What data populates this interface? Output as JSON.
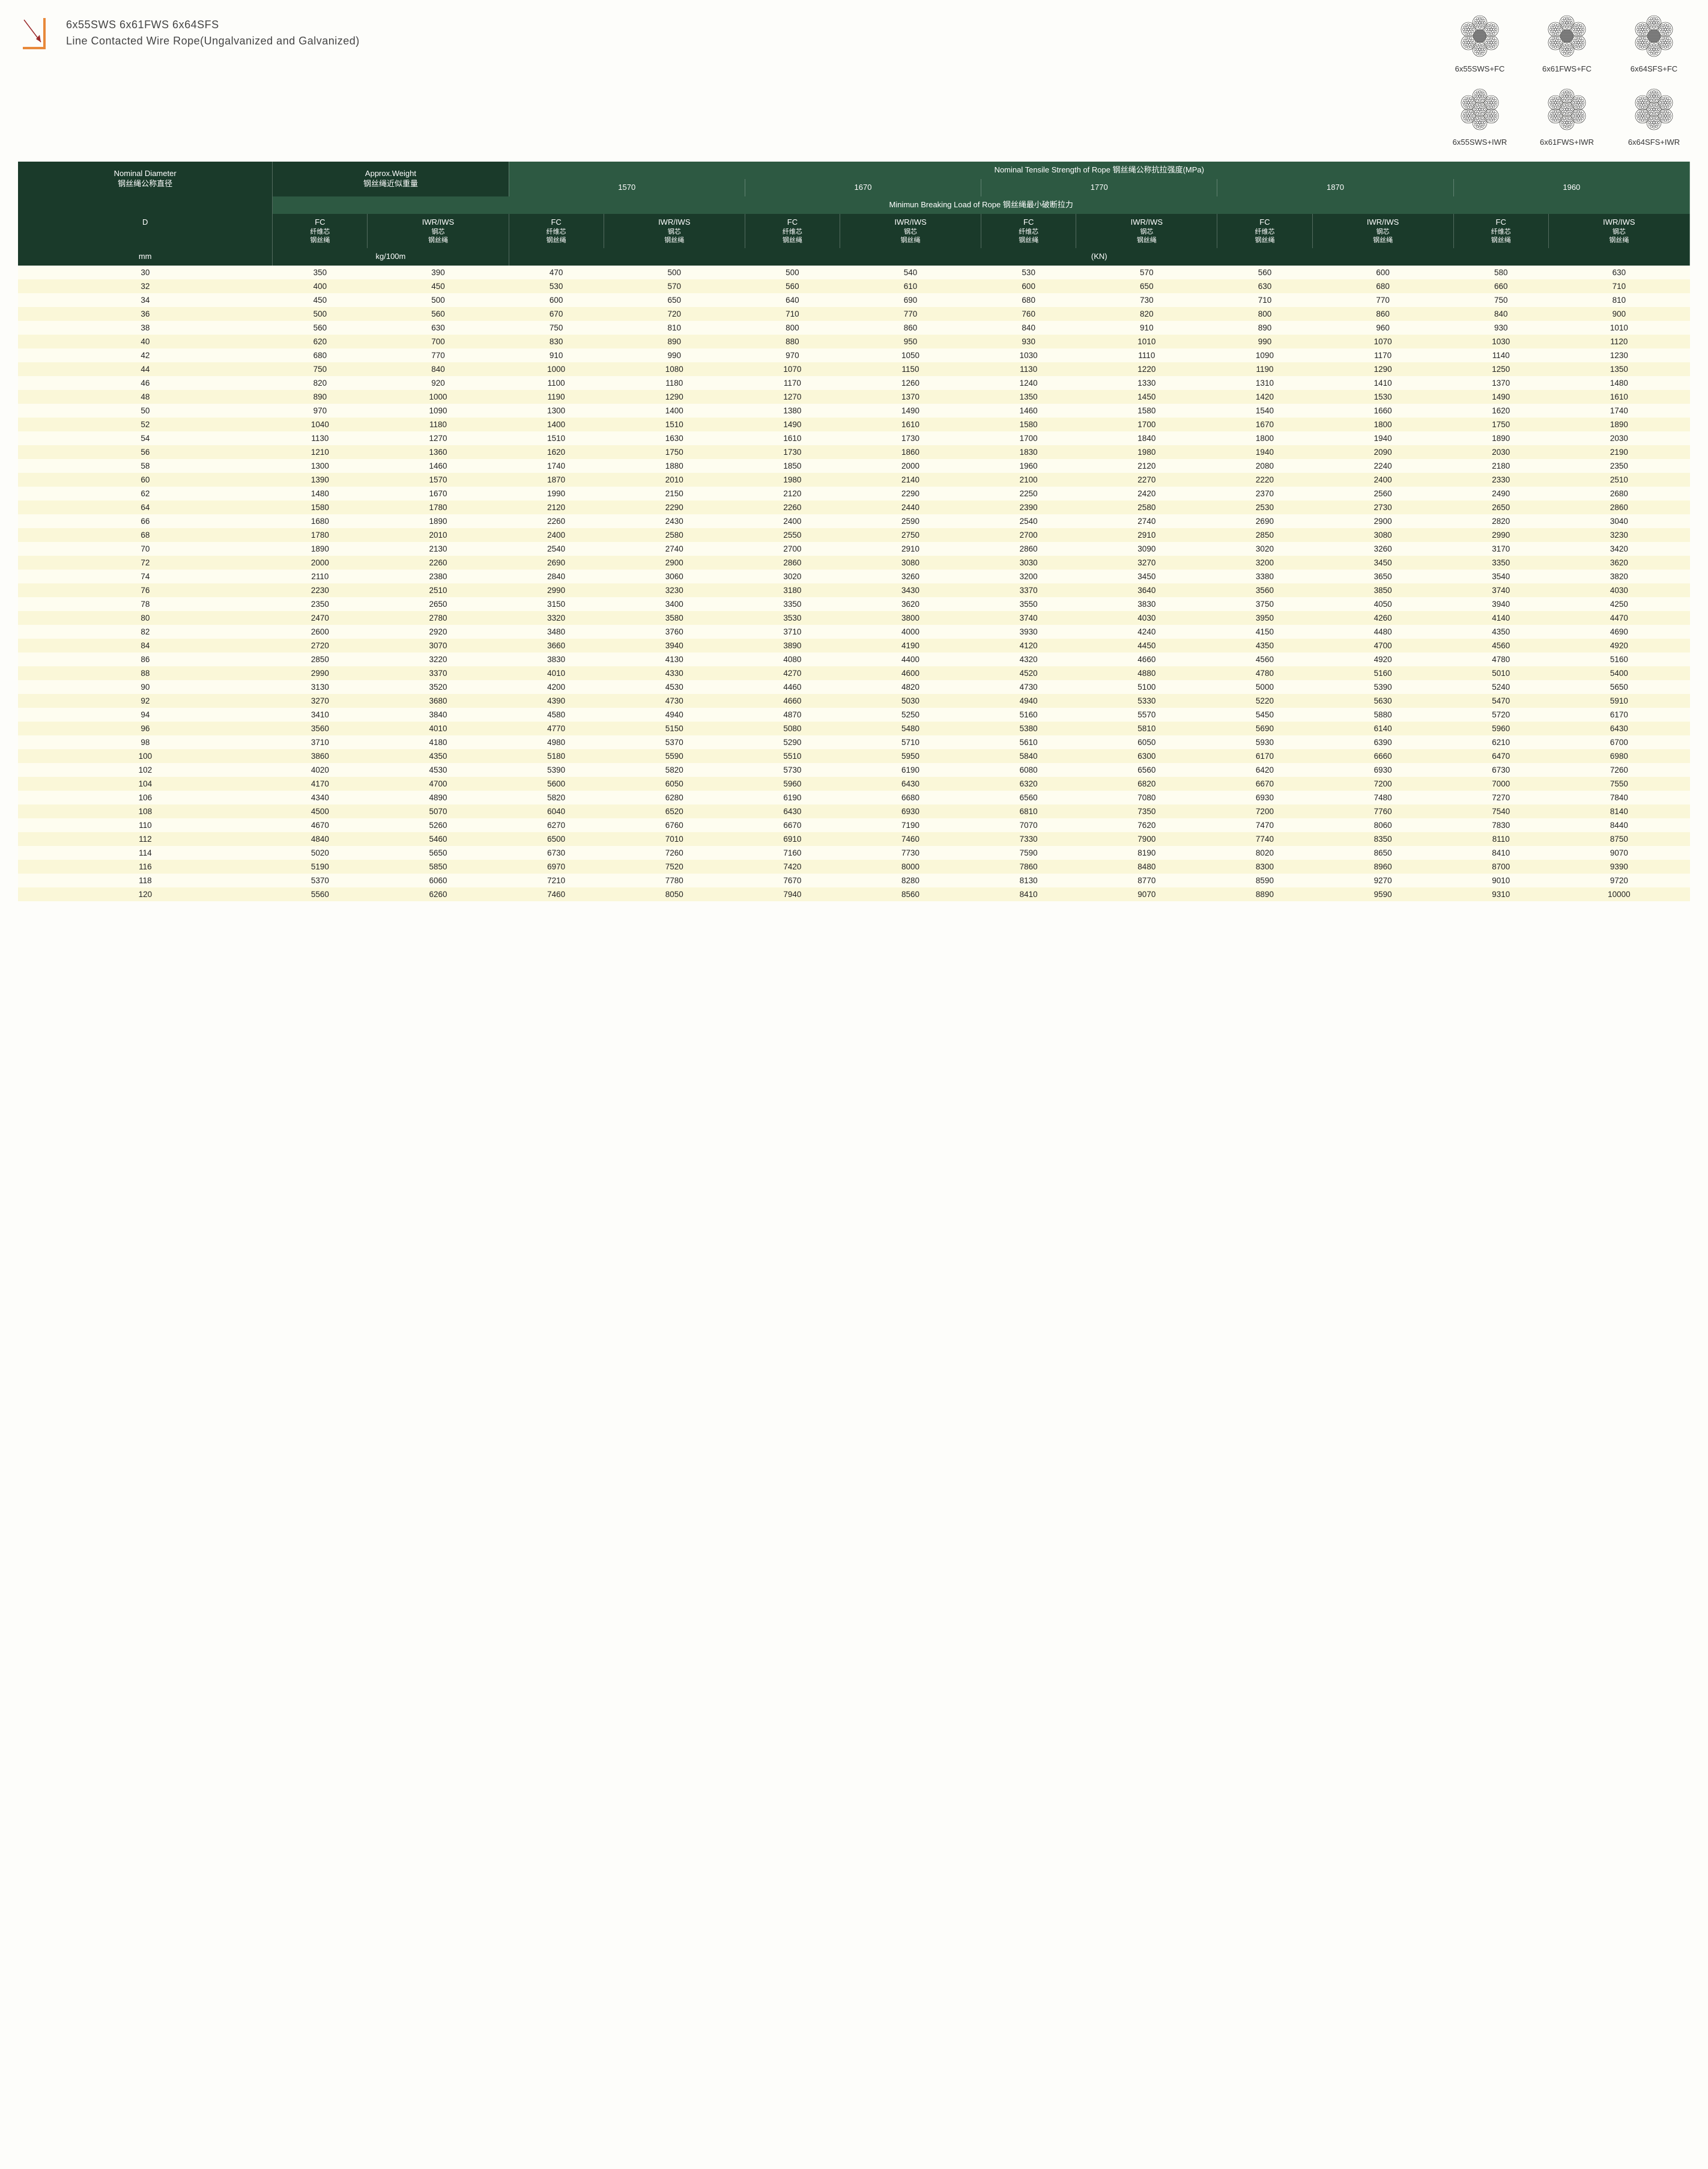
{
  "title": {
    "line1": "6x55SWS  6x61FWS  6x64SFS",
    "line2": "Line Contacted Wire Rope(Ungalvanized and Galvanized)"
  },
  "diagrams": [
    {
      "label": "6x55SWS+FC",
      "center": "fiber"
    },
    {
      "label": "6x61FWS+FC",
      "center": "fiber"
    },
    {
      "label": "6x64SFS+FC",
      "center": "fiber"
    },
    {
      "label": "6x55SWS+IWR",
      "center": "wire"
    },
    {
      "label": "6x61FWS+IWR",
      "center": "wire"
    },
    {
      "label": "6x64SFS+IWR",
      "center": "wire"
    }
  ],
  "headers": {
    "nominal_diameter": "Nominal Diameter",
    "nominal_diameter_cn": "钢丝绳公称直径",
    "approx_weight": "Approx.Weight",
    "approx_weight_cn": "钢丝绳近似重量",
    "nominal_tensile": "Nominal Tensile Strength of Rope  钢丝绳公称抗拉强度(MPa)",
    "min_breaking": "Minimun Breaking Load of Rope  钢丝绳最小破断拉力",
    "strength_labels": [
      "1570",
      "1670",
      "1770",
      "1870",
      "1960"
    ],
    "D": "D",
    "fc": "FC",
    "fc_cn1": "纤维芯",
    "fc_cn2": "钢丝绳",
    "iwr": "IWR/IWS",
    "iwr_cn1": "钢芯",
    "iwr_cn2": "钢丝绳",
    "mm": "mm",
    "weight_unit": "kg/100m",
    "kn": "(KN)"
  },
  "colors": {
    "header_dark": "#1a3a2a",
    "header_med": "#2d5942",
    "row_light": "#fefdf0",
    "row_alt": "#faf7d8",
    "accent_orange": "#e8893a"
  },
  "rows": [
    [
      30,
      350,
      390,
      470,
      500,
      500,
      540,
      530,
      570,
      560,
      600,
      580,
      630
    ],
    [
      32,
      400,
      450,
      530,
      570,
      560,
      610,
      600,
      650,
      630,
      680,
      660,
      710
    ],
    [
      34,
      450,
      500,
      600,
      650,
      640,
      690,
      680,
      730,
      710,
      770,
      750,
      810
    ],
    [
      36,
      500,
      560,
      670,
      720,
      710,
      770,
      760,
      820,
      800,
      860,
      840,
      900
    ],
    [
      38,
      560,
      630,
      750,
      810,
      800,
      860,
      840,
      910,
      890,
      960,
      930,
      1010
    ],
    [
      40,
      620,
      700,
      830,
      890,
      880,
      950,
      930,
      1010,
      990,
      1070,
      1030,
      1120
    ],
    [
      42,
      680,
      770,
      910,
      990,
      970,
      1050,
      1030,
      1110,
      1090,
      1170,
      1140,
      1230
    ],
    [
      44,
      750,
      840,
      1000,
      1080,
      1070,
      1150,
      1130,
      1220,
      1190,
      1290,
      1250,
      1350
    ],
    [
      46,
      820,
      920,
      1100,
      1180,
      1170,
      1260,
      1240,
      1330,
      1310,
      1410,
      1370,
      1480
    ],
    [
      48,
      890,
      1000,
      1190,
      1290,
      1270,
      1370,
      1350,
      1450,
      1420,
      1530,
      1490,
      1610
    ],
    [
      50,
      970,
      1090,
      1300,
      1400,
      1380,
      1490,
      1460,
      1580,
      1540,
      1660,
      1620,
      1740
    ],
    [
      52,
      1040,
      1180,
      1400,
      1510,
      1490,
      1610,
      1580,
      1700,
      1670,
      1800,
      1750,
      1890
    ],
    [
      54,
      1130,
      1270,
      1510,
      1630,
      1610,
      1730,
      1700,
      1840,
      1800,
      1940,
      1890,
      2030
    ],
    [
      56,
      1210,
      1360,
      1620,
      1750,
      1730,
      1860,
      1830,
      1980,
      1940,
      2090,
      2030,
      2190
    ],
    [
      58,
      1300,
      1460,
      1740,
      1880,
      1850,
      2000,
      1960,
      2120,
      2080,
      2240,
      2180,
      2350
    ],
    [
      60,
      1390,
      1570,
      1870,
      2010,
      1980,
      2140,
      2100,
      2270,
      2220,
      2400,
      2330,
      2510
    ],
    [
      62,
      1480,
      1670,
      1990,
      2150,
      2120,
      2290,
      2250,
      2420,
      2370,
      2560,
      2490,
      2680
    ],
    [
      64,
      1580,
      1780,
      2120,
      2290,
      2260,
      2440,
      2390,
      2580,
      2530,
      2730,
      2650,
      2860
    ],
    [
      66,
      1680,
      1890,
      2260,
      2430,
      2400,
      2590,
      2540,
      2740,
      2690,
      2900,
      2820,
      3040
    ],
    [
      68,
      1780,
      2010,
      2400,
      2580,
      2550,
      2750,
      2700,
      2910,
      2850,
      3080,
      2990,
      3230
    ],
    [
      70,
      1890,
      2130,
      2540,
      2740,
      2700,
      2910,
      2860,
      3090,
      3020,
      3260,
      3170,
      3420
    ],
    [
      72,
      2000,
      2260,
      2690,
      2900,
      2860,
      3080,
      3030,
      3270,
      3200,
      3450,
      3350,
      3620
    ],
    [
      74,
      2110,
      2380,
      2840,
      3060,
      3020,
      3260,
      3200,
      3450,
      3380,
      3650,
      3540,
      3820
    ],
    [
      76,
      2230,
      2510,
      2990,
      3230,
      3180,
      3430,
      3370,
      3640,
      3560,
      3850,
      3740,
      4030
    ],
    [
      78,
      2350,
      2650,
      3150,
      3400,
      3350,
      3620,
      3550,
      3830,
      3750,
      4050,
      3940,
      4250
    ],
    [
      80,
      2470,
      2780,
      3320,
      3580,
      3530,
      3800,
      3740,
      4030,
      3950,
      4260,
      4140,
      4470
    ],
    [
      82,
      2600,
      2920,
      3480,
      3760,
      3710,
      4000,
      3930,
      4240,
      4150,
      4480,
      4350,
      4690
    ],
    [
      84,
      2720,
      3070,
      3660,
      3940,
      3890,
      4190,
      4120,
      4450,
      4350,
      4700,
      4560,
      4920
    ],
    [
      86,
      2850,
      3220,
      3830,
      4130,
      4080,
      4400,
      4320,
      4660,
      4560,
      4920,
      4780,
      5160
    ],
    [
      88,
      2990,
      3370,
      4010,
      4330,
      4270,
      4600,
      4520,
      4880,
      4780,
      5160,
      5010,
      5400
    ],
    [
      90,
      3130,
      3520,
      4200,
      4530,
      4460,
      4820,
      4730,
      5100,
      5000,
      5390,
      5240,
      5650
    ],
    [
      92,
      3270,
      3680,
      4390,
      4730,
      4660,
      5030,
      4940,
      5330,
      5220,
      5630,
      5470,
      5910
    ],
    [
      94,
      3410,
      3840,
      4580,
      4940,
      4870,
      5250,
      5160,
      5570,
      5450,
      5880,
      5720,
      6170
    ],
    [
      96,
      3560,
      4010,
      4770,
      5150,
      5080,
      5480,
      5380,
      5810,
      5690,
      6140,
      5960,
      6430
    ],
    [
      98,
      3710,
      4180,
      4980,
      5370,
      5290,
      5710,
      5610,
      6050,
      5930,
      6390,
      6210,
      6700
    ],
    [
      100,
      3860,
      4350,
      5180,
      5590,
      5510,
      5950,
      5840,
      6300,
      6170,
      6660,
      6470,
      6980
    ],
    [
      102,
      4020,
      4530,
      5390,
      5820,
      5730,
      6190,
      6080,
      6560,
      6420,
      6930,
      6730,
      7260
    ],
    [
      104,
      4170,
      4700,
      5600,
      6050,
      5960,
      6430,
      6320,
      6820,
      6670,
      7200,
      7000,
      7550
    ],
    [
      106,
      4340,
      4890,
      5820,
      6280,
      6190,
      6680,
      6560,
      7080,
      6930,
      7480,
      7270,
      7840
    ],
    [
      108,
      4500,
      5070,
      6040,
      6520,
      6430,
      6930,
      6810,
      7350,
      7200,
      7760,
      7540,
      8140
    ],
    [
      110,
      4670,
      5260,
      6270,
      6760,
      6670,
      7190,
      7070,
      7620,
      7470,
      8060,
      7830,
      8440
    ],
    [
      112,
      4840,
      5460,
      6500,
      7010,
      6910,
      7460,
      7330,
      7900,
      7740,
      8350,
      8110,
      8750
    ],
    [
      114,
      5020,
      5650,
      6730,
      7260,
      7160,
      7730,
      7590,
      8190,
      8020,
      8650,
      8410,
      9070
    ],
    [
      116,
      5190,
      5850,
      6970,
      7520,
      7420,
      8000,
      7860,
      8480,
      8300,
      8960,
      8700,
      9390
    ],
    [
      118,
      5370,
      6060,
      7210,
      7780,
      7670,
      8280,
      8130,
      8770,
      8590,
      9270,
      9010,
      9720
    ],
    [
      120,
      5560,
      6260,
      7460,
      8050,
      7940,
      8560,
      8410,
      9070,
      8890,
      9590,
      9310,
      10000
    ]
  ]
}
